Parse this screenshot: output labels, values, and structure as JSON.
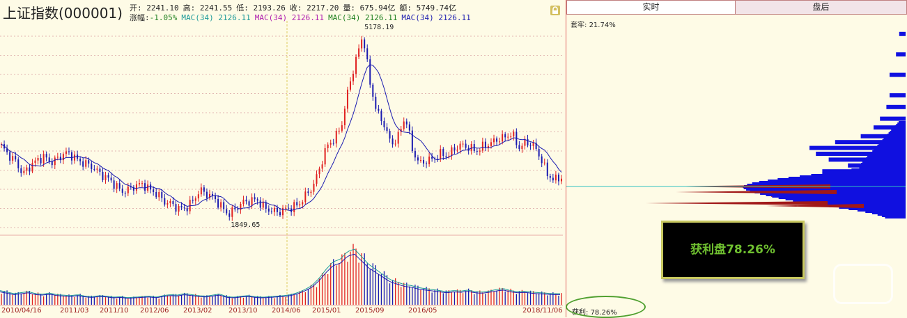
{
  "header": {
    "title": "上证指数(000001)",
    "quote_line": [
      {
        "label": "开:",
        "value": "2241.10"
      },
      {
        "label": "高:",
        "value": "2241.55"
      },
      {
        "label": "低:",
        "value": "2193.26"
      },
      {
        "label": "收:",
        "value": "2217.20"
      },
      {
        "label": "量:",
        "value": "675.94亿"
      },
      {
        "label": "额:",
        "value": "5749.74亿"
      }
    ],
    "change_label": "涨幅:",
    "change_value": "-1.05%",
    "mac": [
      {
        "text": "MAC(34) 2126.11",
        "color": "#1e9a9a"
      },
      {
        "text": "MAC(34) 2126.11",
        "color": "#b020b0"
      },
      {
        "text": "MAC(34) 2126.11",
        "color": "#208020"
      },
      {
        "text": "MAC(34) 2126.11",
        "color": "#2020b0"
      }
    ]
  },
  "chart_data": [
    {
      "type": "candlestick",
      "name": "price",
      "high_label": "5178.19",
      "low_label": "1849.65",
      "x_labels": [
        "2010/04/16",
        "2011/03",
        "2011/10",
        "2012/06",
        "2013/02",
        "2013/10",
        "2014/06",
        "2015/01",
        "2015/09",
        "2016/05",
        "2018/11/06"
      ],
      "ylim": [
        1750,
        5250
      ],
      "close_series": [
        3130,
        2980,
        2870,
        2650,
        2780,
        2890,
        2950,
        2850,
        2920,
        3020,
        2970,
        2870,
        2830,
        2760,
        2650,
        2580,
        2470,
        2350,
        2390,
        2460,
        2480,
        2380,
        2310,
        2180,
        2140,
        2060,
        2070,
        2190,
        2380,
        2310,
        2240,
        2100,
        1960,
        2050,
        2170,
        2190,
        2220,
        2080,
        2030,
        2000,
        2050,
        2080,
        2140,
        2300,
        2450,
        2800,
        3150,
        3250,
        3500,
        4150,
        4600,
        5050,
        4200,
        3700,
        3500,
        3150,
        3300,
        3650,
        3050,
        2830,
        2880,
        2920,
        3000,
        2970,
        3100,
        3150,
        3100,
        3050,
        3130,
        3180,
        3250,
        3280,
        3350,
        3100,
        3200,
        3150,
        2950,
        2650,
        2550,
        2600
      ]
    },
    {
      "type": "bar",
      "name": "volume",
      "values": [
        28,
        25,
        22,
        24,
        26,
        22,
        21,
        23,
        20,
        19,
        18,
        20,
        17,
        16,
        18,
        17,
        15,
        16,
        14,
        15,
        16,
        17,
        15,
        18,
        20,
        19,
        22,
        20,
        18,
        17,
        19,
        21,
        16,
        15,
        17,
        18,
        16,
        15,
        16,
        17,
        18,
        20,
        24,
        30,
        38,
        52,
        70,
        85,
        90,
        105,
        110,
        95,
        80,
        70,
        60,
        50,
        45,
        40,
        38,
        34,
        32,
        30,
        28,
        26,
        28,
        27,
        29,
        26,
        25,
        27,
        30,
        32,
        28,
        26,
        27,
        25,
        24,
        23,
        22,
        22
      ]
    },
    {
      "type": "bar",
      "name": "chip-distribution",
      "top_label": "套牢:",
      "top_value": "21.74%",
      "bottom_label": "获利:",
      "bottom_value": "78.26%",
      "price_levels": [
        5050,
        4700,
        4350,
        4000,
        3800,
        3600,
        3450,
        3300,
        3200,
        3100,
        3000,
        2900,
        2800,
        2700,
        2600,
        2500,
        2400,
        2300,
        2200,
        2100,
        2000
      ],
      "volume_share": [
        0.02,
        0.03,
        0.05,
        0.05,
        0.06,
        0.08,
        0.1,
        0.14,
        0.22,
        0.3,
        0.28,
        0.24,
        0.18,
        0.26,
        0.22,
        0.28,
        0.4,
        0.42,
        0.35,
        0.12,
        0.05
      ]
    }
  ],
  "right_panel": {
    "tab_realtime": "实时",
    "tab_afterhours": "盘后",
    "profit_box": "获利盘78.26%"
  }
}
